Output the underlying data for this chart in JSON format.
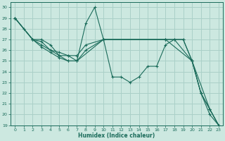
{
  "xlabel": "Humidex (Indice chaleur)",
  "background_color": "#cce8e0",
  "grid_color": "#aad0c8",
  "line_color": "#1a6b5a",
  "marker_color": "#1a6b5a",
  "xlim": [
    -0.5,
    23.5
  ],
  "ylim": [
    19,
    30.5
  ],
  "yticks": [
    19,
    20,
    21,
    22,
    23,
    24,
    25,
    26,
    27,
    28,
    29,
    30
  ],
  "xticks": [
    0,
    1,
    2,
    3,
    4,
    5,
    6,
    7,
    8,
    9,
    10,
    11,
    12,
    13,
    14,
    15,
    16,
    17,
    18,
    19,
    20,
    21,
    22,
    23
  ],
  "series": [
    {
      "points": [
        [
          0,
          29
        ],
        [
          1,
          28
        ],
        [
          2,
          27
        ],
        [
          3,
          27
        ],
        [
          4,
          26.5
        ],
        [
          5,
          25.5
        ],
        [
          6,
          25.5
        ],
        [
          7,
          25
        ],
        [
          8,
          28.5
        ],
        [
          9,
          30
        ],
        [
          10,
          27
        ],
        [
          11,
          23.5
        ],
        [
          12,
          23.5
        ],
        [
          13,
          23
        ],
        [
          14,
          23.5
        ],
        [
          15,
          24.5
        ],
        [
          16,
          24.5
        ],
        [
          17,
          26.5
        ],
        [
          18,
          27
        ],
        [
          19,
          27
        ],
        [
          20,
          25
        ],
        [
          21,
          22
        ],
        [
          22,
          20
        ],
        [
          23,
          19
        ]
      ]
    },
    {
      "points": [
        [
          0,
          29
        ],
        [
          2,
          27
        ],
        [
          3,
          26.8
        ],
        [
          4,
          26
        ],
        [
          5,
          25.5
        ],
        [
          6,
          25
        ],
        [
          7,
          25
        ],
        [
          8,
          26
        ],
        [
          10,
          27
        ],
        [
          17,
          27
        ],
        [
          18,
          27
        ],
        [
          20,
          25
        ],
        [
          21,
          22
        ],
        [
          22,
          20.5
        ],
        [
          23,
          19
        ]
      ]
    },
    {
      "points": [
        [
          0,
          29
        ],
        [
          2,
          27
        ],
        [
          3,
          26.5
        ],
        [
          4,
          26
        ],
        [
          5,
          25.8
        ],
        [
          6,
          25.5
        ],
        [
          7,
          25.5
        ],
        [
          8,
          26.5
        ],
        [
          10,
          27
        ],
        [
          17,
          27
        ],
        [
          19,
          27
        ],
        [
          20,
          25
        ],
        [
          21,
          22
        ],
        [
          22,
          20.5
        ],
        [
          23,
          19
        ]
      ]
    },
    {
      "points": [
        [
          0,
          29
        ],
        [
          2,
          27
        ],
        [
          3,
          26.3
        ],
        [
          4,
          25.8
        ],
        [
          5,
          25.3
        ],
        [
          6,
          25
        ],
        [
          7,
          25
        ],
        [
          10,
          27
        ],
        [
          17,
          27
        ],
        [
          20,
          25
        ],
        [
          22,
          20.5
        ],
        [
          23,
          19
        ]
      ]
    }
  ]
}
